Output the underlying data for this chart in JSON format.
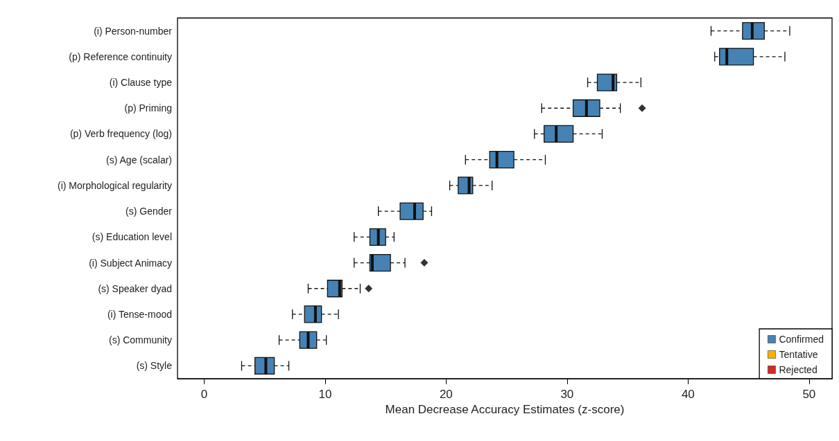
{
  "chart_data": {
    "type": "box",
    "orientation": "horizontal",
    "xlabel": "Mean Decrease Accuracy Estimates (z-score)",
    "categories": [
      "(i) Person-number",
      "(p) Reference continuity",
      "(i) Clause type",
      "(p) Priming",
      "(p) Verb frequency (log)",
      "(s) Age (scalar)",
      "(i) Morphological regularity",
      "(s) Gender",
      "(s) Education level",
      "(i) Subject Animacy",
      "(s) Speaker dyad",
      "(i) Tense-mood",
      "(s) Community",
      "(s) Style"
    ],
    "series": [
      {
        "name": "Confirmed",
        "color": "#4682b4",
        "boxes": [
          {
            "low": 41.9,
            "q1": 44.5,
            "median": 45.3,
            "q3": 46.3,
            "high": 48.4
          },
          {
            "low": 42.2,
            "q1": 42.6,
            "median": 43.2,
            "q3": 45.4,
            "high": 48.0
          },
          {
            "low": 31.7,
            "q1": 32.5,
            "median": 33.8,
            "q3": 34.1,
            "high": 36.1
          },
          {
            "low": 27.9,
            "q1": 30.5,
            "median": 31.6,
            "q3": 32.7,
            "high": 34.4,
            "outliers": [
              36.2
            ]
          },
          {
            "low": 27.3,
            "q1": 28.1,
            "median": 29.1,
            "q3": 30.5,
            "high": 32.9
          },
          {
            "low": 21.6,
            "q1": 23.6,
            "median": 24.2,
            "q3": 25.6,
            "high": 28.2
          },
          {
            "low": 20.3,
            "q1": 21.0,
            "median": 21.9,
            "q3": 22.2,
            "high": 23.8
          },
          {
            "low": 14.4,
            "q1": 16.2,
            "median": 17.4,
            "q3": 18.1,
            "high": 18.8
          },
          {
            "low": 12.4,
            "q1": 13.7,
            "median": 14.4,
            "q3": 15.0,
            "high": 15.7
          },
          {
            "low": 12.4,
            "q1": 13.7,
            "median": 13.9,
            "q3": 15.4,
            "high": 16.6,
            "outliers": [
              18.2
            ]
          },
          {
            "low": 8.6,
            "q1": 10.2,
            "median": 11.2,
            "q3": 11.4,
            "high": 12.9,
            "outliers": [
              13.6
            ]
          },
          {
            "low": 7.3,
            "q1": 8.3,
            "median": 9.2,
            "q3": 9.7,
            "high": 11.1
          },
          {
            "low": 6.2,
            "q1": 7.9,
            "median": 8.6,
            "q3": 9.3,
            "high": 10.1
          },
          {
            "low": 3.1,
            "q1": 4.2,
            "median": 5.1,
            "q3": 5.8,
            "high": 7.0
          }
        ]
      },
      {
        "name": "Tentative",
        "color": "#ffb000",
        "boxes": [
          null,
          null,
          null,
          null,
          null,
          null,
          null,
          null,
          null,
          null,
          null,
          null,
          null,
          null
        ]
      },
      {
        "name": "Rejected",
        "color": "#d62728",
        "boxes": [
          null,
          null,
          null,
          null,
          null,
          null,
          null,
          null,
          null,
          null,
          null,
          null,
          null,
          null
        ]
      }
    ],
    "xlim": [
      -2.2,
      51.9
    ],
    "xticks": [
      0,
      10,
      20,
      30,
      40,
      50
    ],
    "grid": false,
    "legend": "bottom right",
    "marker": "diamond"
  }
}
